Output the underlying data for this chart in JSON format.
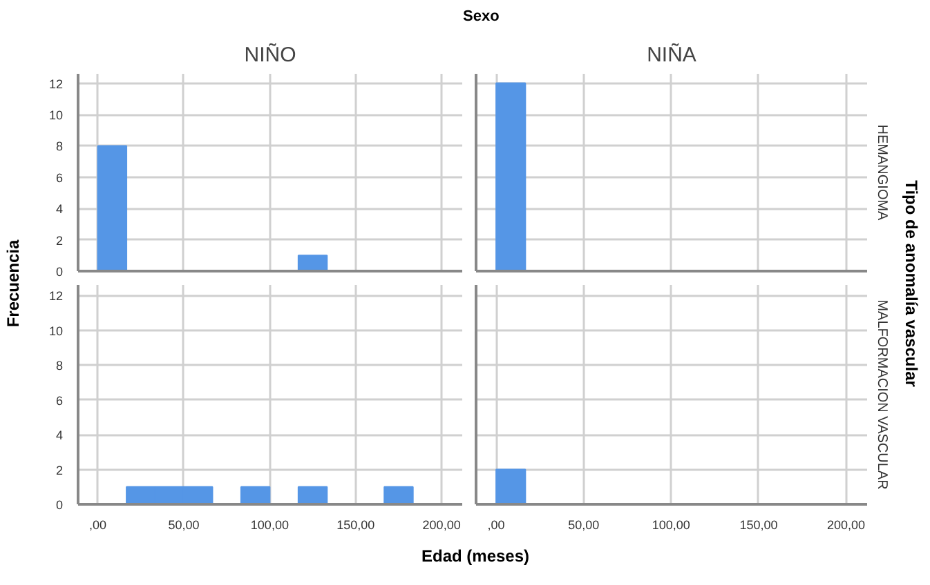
{
  "chart_data": [
    {
      "type": "histogram",
      "title": "NIÑO",
      "bins": [
        0,
        16.67,
        33.33,
        50,
        66.67,
        83.33,
        100,
        116.67,
        133.33,
        150,
        166.67,
        183.33
      ],
      "values": [
        8,
        0,
        0,
        0,
        0,
        0,
        0,
        1,
        0,
        0,
        0
      ],
      "color": "#5596e6",
      "xlim": [
        -11.5,
        212
      ],
      "ylim": [
        0,
        12.6
      ],
      "xticks": [
        {
          "value": 0,
          "label": null
        },
        {
          "value": 50,
          "label": null
        },
        {
          "value": 100,
          "label": null
        },
        {
          "value": 150,
          "label": null
        },
        {
          "value": 200,
          "label": null
        }
      ],
      "yticks": [
        0,
        2,
        4,
        6,
        8,
        10,
        12
      ],
      "grid": true,
      "tick_labels": "y"
    },
    {
      "type": "histogram",
      "title": "NIÑA",
      "y2label": "HEMANGIOMA",
      "bins": [
        0,
        16.67,
        33.33,
        50,
        66.67,
        83.33,
        100,
        116.67,
        133.33,
        150,
        166.67,
        183.33
      ],
      "values": [
        12,
        0,
        0,
        0,
        0,
        0,
        0,
        0,
        0,
        0,
        0
      ],
      "color": "#5596e6",
      "xlim": [
        -11.5,
        212
      ],
      "ylim": [
        0,
        12.6
      ],
      "xticks": [
        {
          "value": 0,
          "label": null
        },
        {
          "value": 50,
          "label": null
        },
        {
          "value": 100,
          "label": null
        },
        {
          "value": 150,
          "label": null
        },
        {
          "value": 200,
          "label": null
        }
      ],
      "yticks": [
        0,
        2,
        4,
        6,
        8,
        10,
        12
      ],
      "grid": true,
      "tick_labels": false
    },
    {
      "type": "histogram",
      "bins": [
        0,
        16.67,
        33.33,
        50,
        66.67,
        83.33,
        100,
        116.67,
        133.33,
        150,
        166.67,
        183.33
      ],
      "values": [
        0,
        1,
        1,
        1,
        0,
        1,
        0,
        1,
        0,
        0,
        1
      ],
      "color": "#5596e6",
      "xlim": [
        -11.5,
        212
      ],
      "ylim": [
        0,
        12.6
      ],
      "xticks": [
        {
          "value": 0,
          "label": ",00"
        },
        {
          "value": 50,
          "label": "50,00"
        },
        {
          "value": 100,
          "label": "100,00"
        },
        {
          "value": 150,
          "label": "150,00"
        },
        {
          "value": 200,
          "label": "200,00"
        }
      ],
      "yticks": [
        0,
        2,
        4,
        6,
        8,
        10,
        12
      ],
      "grid": true
    },
    {
      "type": "histogram",
      "y2label": "MALFORMACION VASCULAR",
      "bins": [
        0,
        16.67,
        33.33,
        50,
        66.67,
        83.33,
        100,
        116.67,
        133.33,
        150,
        166.67,
        183.33
      ],
      "values": [
        2,
        0,
        0,
        0,
        0,
        0,
        0,
        0,
        0,
        0,
        0
      ],
      "color": "#5596e6",
      "xlim": [
        -11.5,
        212
      ],
      "ylim": [
        0,
        12.6
      ],
      "xticks": [
        {
          "value": 0,
          "label": ",00"
        },
        {
          "value": 50,
          "label": "50,00"
        },
        {
          "value": 100,
          "label": "100,00"
        },
        {
          "value": 150,
          "label": "150,00"
        },
        {
          "value": 200,
          "label": "200,00"
        }
      ],
      "yticks": [
        0,
        2,
        4,
        6,
        8,
        10,
        12
      ],
      "grid": true,
      "tick_labels": "x"
    },
    {
      "type": "other",
      "title": "Sexo",
      "xlabel": "Edad (meses)",
      "ylabel": "Frecuencia",
      "y2label": "Tipo de anomalía vascular"
    }
  ]
}
